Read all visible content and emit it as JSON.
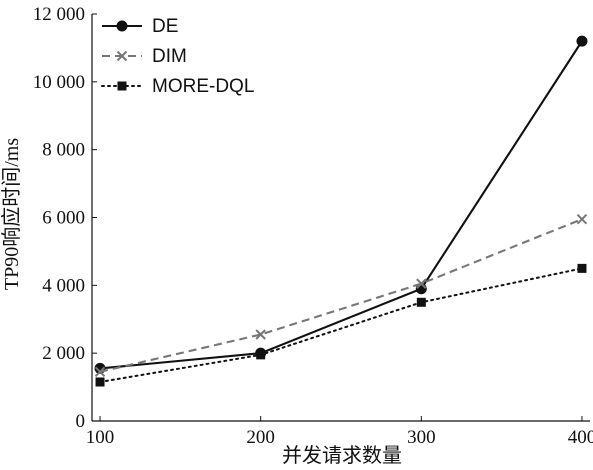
{
  "chart_data": {
    "type": "line",
    "title": "",
    "xlabel": "并发请求数量",
    "ylabel": "TP90响应时间/ms",
    "x": [
      100,
      200,
      300,
      400
    ],
    "x_tick_labels": [
      "100",
      "200",
      "300",
      "400"
    ],
    "xlim": [
      95,
      405
    ],
    "ylim": [
      0,
      12000
    ],
    "y_ticks": [
      0,
      2000,
      4000,
      6000,
      8000,
      10000,
      12000
    ],
    "y_tick_labels": [
      "0",
      "2 000",
      "4 000",
      "6 000",
      "8 000",
      "10 000",
      "12 000"
    ],
    "grid": false,
    "legend_position": "top-left",
    "series": [
      {
        "name": "DE",
        "values": [
          1550,
          2000,
          3900,
          11200
        ],
        "color": "#111111",
        "line_style": "solid",
        "marker": "circle"
      },
      {
        "name": "DIM",
        "values": [
          1450,
          2550,
          4050,
          5950
        ],
        "color": "#777777",
        "line_style": "dashed",
        "marker": "x"
      },
      {
        "name": "MORE-DQL",
        "values": [
          1150,
          1950,
          3500,
          4500
        ],
        "color": "#111111",
        "line_style": "dotted",
        "marker": "square"
      }
    ]
  }
}
